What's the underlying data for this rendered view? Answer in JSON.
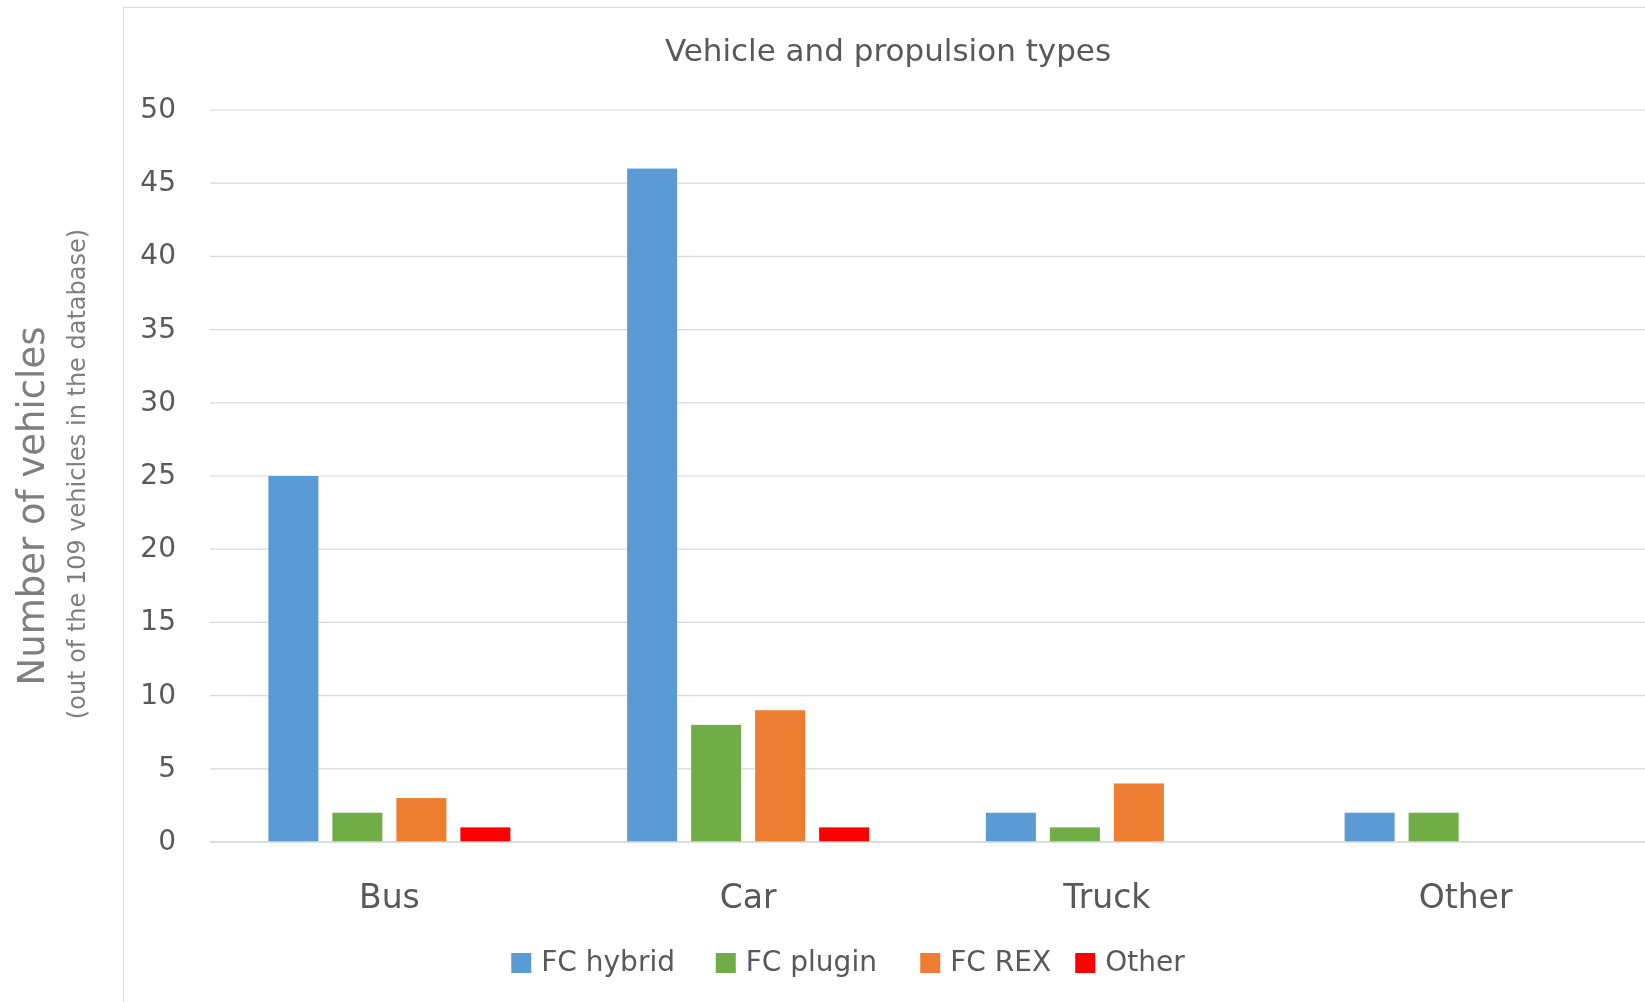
{
  "chart_data": {
    "type": "bar",
    "title": "Vehicle and propulsion types",
    "ylabel": "Number of vehicles",
    "subtitle": "(out of the 109 vehicles in the database)",
    "categories": [
      "Bus",
      "Car",
      "Truck",
      "Other"
    ],
    "series": [
      {
        "name": "FC hybrid",
        "color": "#5b9bd5",
        "values": [
          25,
          46,
          2,
          2
        ]
      },
      {
        "name": "FC plugin",
        "color": "#70ad47",
        "values": [
          2,
          8,
          1,
          2
        ]
      },
      {
        "name": "FC REX",
        "color": "#ed7d31",
        "values": [
          3,
          9,
          4,
          0
        ]
      },
      {
        "name": "Other",
        "color": "#ff0000",
        "values": [
          1,
          1,
          0,
          0
        ]
      }
    ],
    "ylim": [
      0,
      50
    ],
    "yticks": [
      0,
      5,
      10,
      15,
      20,
      25,
      30,
      35,
      40,
      45,
      50
    ],
    "grid": "y",
    "legend": "bottom"
  }
}
